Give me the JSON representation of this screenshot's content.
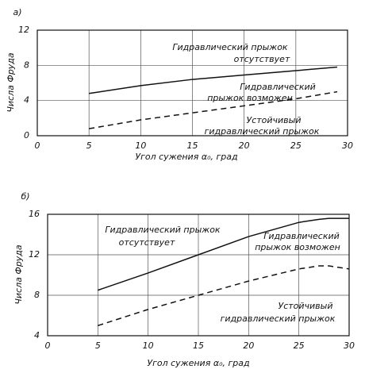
{
  "chart_data": [
    {
      "type": "line",
      "panel": "а)",
      "ylabel": "Числа Фруда",
      "xlabel": "Угол сужения α₀, град",
      "xlim": [
        0,
        30
      ],
      "xticks": [
        0,
        5,
        10,
        15,
        20,
        25,
        30
      ],
      "ylim": [
        0,
        12
      ],
      "yticks": [
        0,
        4,
        8,
        12
      ],
      "grid": true,
      "x": [
        5,
        10,
        15,
        20,
        25,
        29
      ],
      "series": [
        {
          "color": "#111111",
          "style": "solid",
          "values": [
            4.8,
            5.7,
            6.4,
            6.9,
            7.4,
            7.8
          ]
        },
        {
          "color": "#111111",
          "style": "dashed",
          "values": [
            0.8,
            1.8,
            2.6,
            3.4,
            4.2,
            5.0
          ]
        }
      ],
      "annotations": [
        [
          "Гидравлический прыжок",
          "отсутствует"
        ],
        [
          "Гидравлический",
          "прыжок возможен"
        ],
        [
          "Устойчивый",
          "гидравлический прыжок"
        ]
      ]
    },
    {
      "type": "line",
      "panel": "б)",
      "ylabel": "Числа Фруда",
      "xlabel": "Угол сужения α₀, град",
      "xlim": [
        0,
        30
      ],
      "xticks": [
        0,
        5,
        10,
        15,
        20,
        25,
        30
      ],
      "ylim": [
        4,
        16
      ],
      "yticks": [
        4,
        8,
        12,
        16
      ],
      "grid": true,
      "x": [
        5,
        10,
        15,
        20,
        25,
        27,
        28,
        30
      ],
      "series": [
        {
          "color": "#111111",
          "style": "solid",
          "values": [
            8.5,
            10.2,
            12.0,
            13.8,
            15.2,
            15.5,
            15.6,
            15.6
          ]
        },
        {
          "color": "#111111",
          "style": "dashed",
          "values": [
            5.0,
            6.6,
            8.0,
            9.4,
            10.6,
            10.9,
            10.9,
            10.6
          ]
        }
      ],
      "annotations": [
        [
          "Гидравлический прыжок",
          "отсутствует"
        ],
        [
          "Гидравлический",
          "прыжок возможен"
        ],
        [
          "Устойчивый",
          "гидравлический прыжок"
        ]
      ]
    }
  ]
}
